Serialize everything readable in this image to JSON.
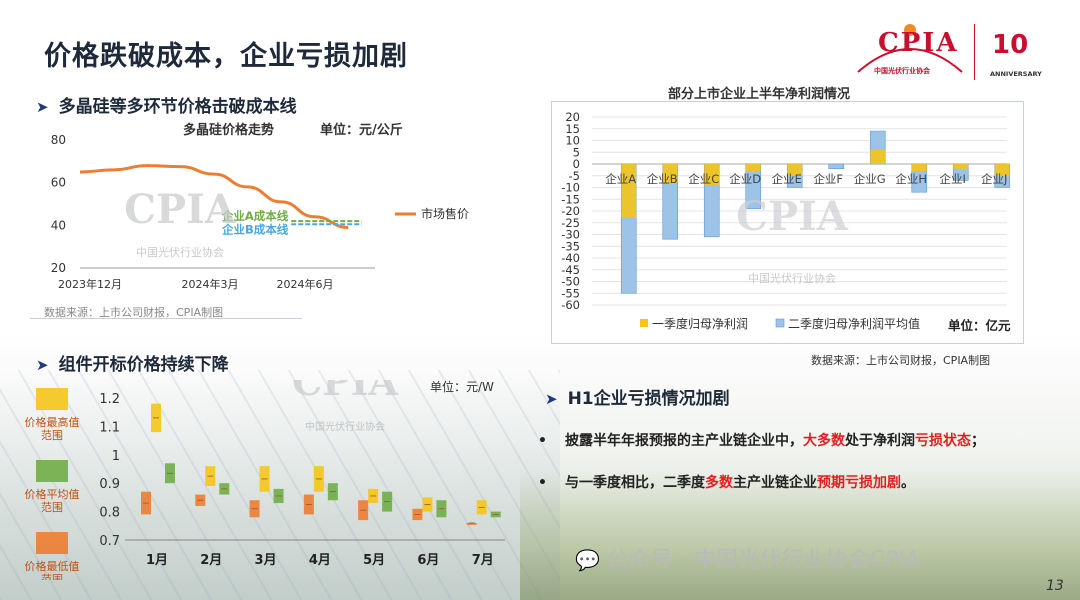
{
  "title": "价格跌破成本，企业亏损加剧",
  "logo": {
    "name": "CPIA",
    "sub": "中国光伏行业协会",
    "ten": "10",
    "anniversary": "ANNIVERSARY"
  },
  "section1": {
    "heading": "多晶硅等多环节价格击破成本线",
    "chart_title": "多晶硅价格走势",
    "unit": "单位：元/公斤",
    "source": "数据来源：上市公司财报，CPIA制图"
  },
  "section2": {
    "heading": "组件开标价格持续下降",
    "unit": "单位：元/W"
  },
  "section3": {
    "chart_title": "部分上市企业上半年净利润情况",
    "unit": "单位：亿元",
    "source": "数据来源：上市公司财报，CPIA制图"
  },
  "section4": {
    "heading": "H1企业亏损情况加剧",
    "bullet1": {
      "t1": "披露半年年报预报的主产业链企业中，",
      "t2": "大多数",
      "t3": "处于净利润",
      "t4": "亏损状态",
      "t5": "；"
    },
    "bullet2": {
      "t1": "与一季度相比，二季度",
      "t2": "多数",
      "t3": "主产业链企业",
      "t4": "预期亏损加剧",
      "t5": "。"
    }
  },
  "watermark": "公众号 · 中国光伏行业协会CPIA",
  "page_number": "13",
  "colors": {
    "orange": "#ed7d31",
    "green": "#70ad47",
    "blue": "#4aa8e0",
    "yellow": "#f5c518",
    "q2blue": "#9dc3e6",
    "accent_red": "#c8102e"
  },
  "chart_data": [
    {
      "type": "line",
      "title": "多晶硅价格走势",
      "ylabel": "单位：元/公斤",
      "ylim": [
        20,
        80
      ],
      "yticks": [
        "80",
        "60",
        "40",
        "20"
      ],
      "xticks": [
        "2023年12月",
        "2024年3月",
        "2024年6月"
      ],
      "series": [
        {
          "name": "市场售价",
          "x": [
            0,
            1,
            2,
            3,
            4,
            5,
            6,
            7,
            8
          ],
          "values": [
            65,
            66,
            68,
            67.5,
            64,
            58,
            51,
            44,
            39
          ]
        }
      ],
      "xrange": [
        0,
        8.5
      ],
      "cost_lines": [
        {
          "name": "企业A成本线",
          "value": 42,
          "x_start": 6.3,
          "x_end": 8.4,
          "color": "#70ad47"
        },
        {
          "name": "企业B成本线",
          "value": 40.5,
          "x_start": 6.3,
          "x_end": 8.4,
          "color": "#4aa8e0"
        }
      ]
    },
    {
      "type": "bar",
      "title": "部分上市企业上半年净利润情况",
      "ylim": [
        -60,
        20
      ],
      "yticks": [
        "20",
        "15",
        "10",
        "5",
        "0",
        "-5",
        "-10",
        "-15",
        "-20",
        "-25",
        "-30",
        "-35",
        "-40",
        "-45",
        "-50",
        "-55",
        "-60"
      ],
      "categories": [
        "企业A",
        "企业B",
        "企业C",
        "企业D",
        "企业E",
        "企业F",
        "企业G",
        "企业H",
        "企业I",
        "企业J"
      ],
      "series": [
        {
          "name": "一季度归母净利润",
          "values": [
            -23,
            -8,
            -9,
            -3,
            -5,
            0,
            6,
            -3,
            -2,
            -5
          ]
        },
        {
          "name": "二季度归母净利润平均值",
          "values": [
            -55,
            -32,
            -31,
            -19,
            -10,
            -2,
            14,
            -12,
            -7,
            -10
          ]
        }
      ]
    },
    {
      "type": "box",
      "unit": "单位：元/W",
      "ylim": [
        0.7,
        1.2
      ],
      "yticks": [
        "1.2",
        "1.1",
        "1",
        "0.9",
        "0.8",
        "0.7"
      ],
      "categories": [
        "1月",
        "2月",
        "3月",
        "4月",
        "5月",
        "6月",
        "7月"
      ],
      "legend": [
        "价格最高值范围",
        "价格平均值范围",
        "价格最低值范围"
      ],
      "high_range": [
        [
          1.08,
          1.18
        ],
        [
          0.89,
          0.96
        ],
        [
          0.87,
          0.96
        ],
        [
          0.87,
          0.96
        ],
        [
          0.83,
          0.88
        ],
        [
          0.8,
          0.85
        ],
        [
          0.79,
          0.84
        ]
      ],
      "avg_range": [
        [
          0.9,
          0.97
        ],
        [
          0.86,
          0.9
        ],
        [
          0.83,
          0.88
        ],
        [
          0.84,
          0.9
        ],
        [
          0.8,
          0.87
        ],
        [
          0.78,
          0.84
        ],
        [
          0.78,
          0.8
        ]
      ],
      "low_range": [
        [
          0.79,
          0.87
        ],
        [
          0.82,
          0.86
        ],
        [
          0.78,
          0.84
        ],
        [
          0.79,
          0.86
        ],
        [
          0.77,
          0.84
        ],
        [
          0.77,
          0.81
        ],
        [
          0.76,
          0.76
        ]
      ]
    }
  ]
}
